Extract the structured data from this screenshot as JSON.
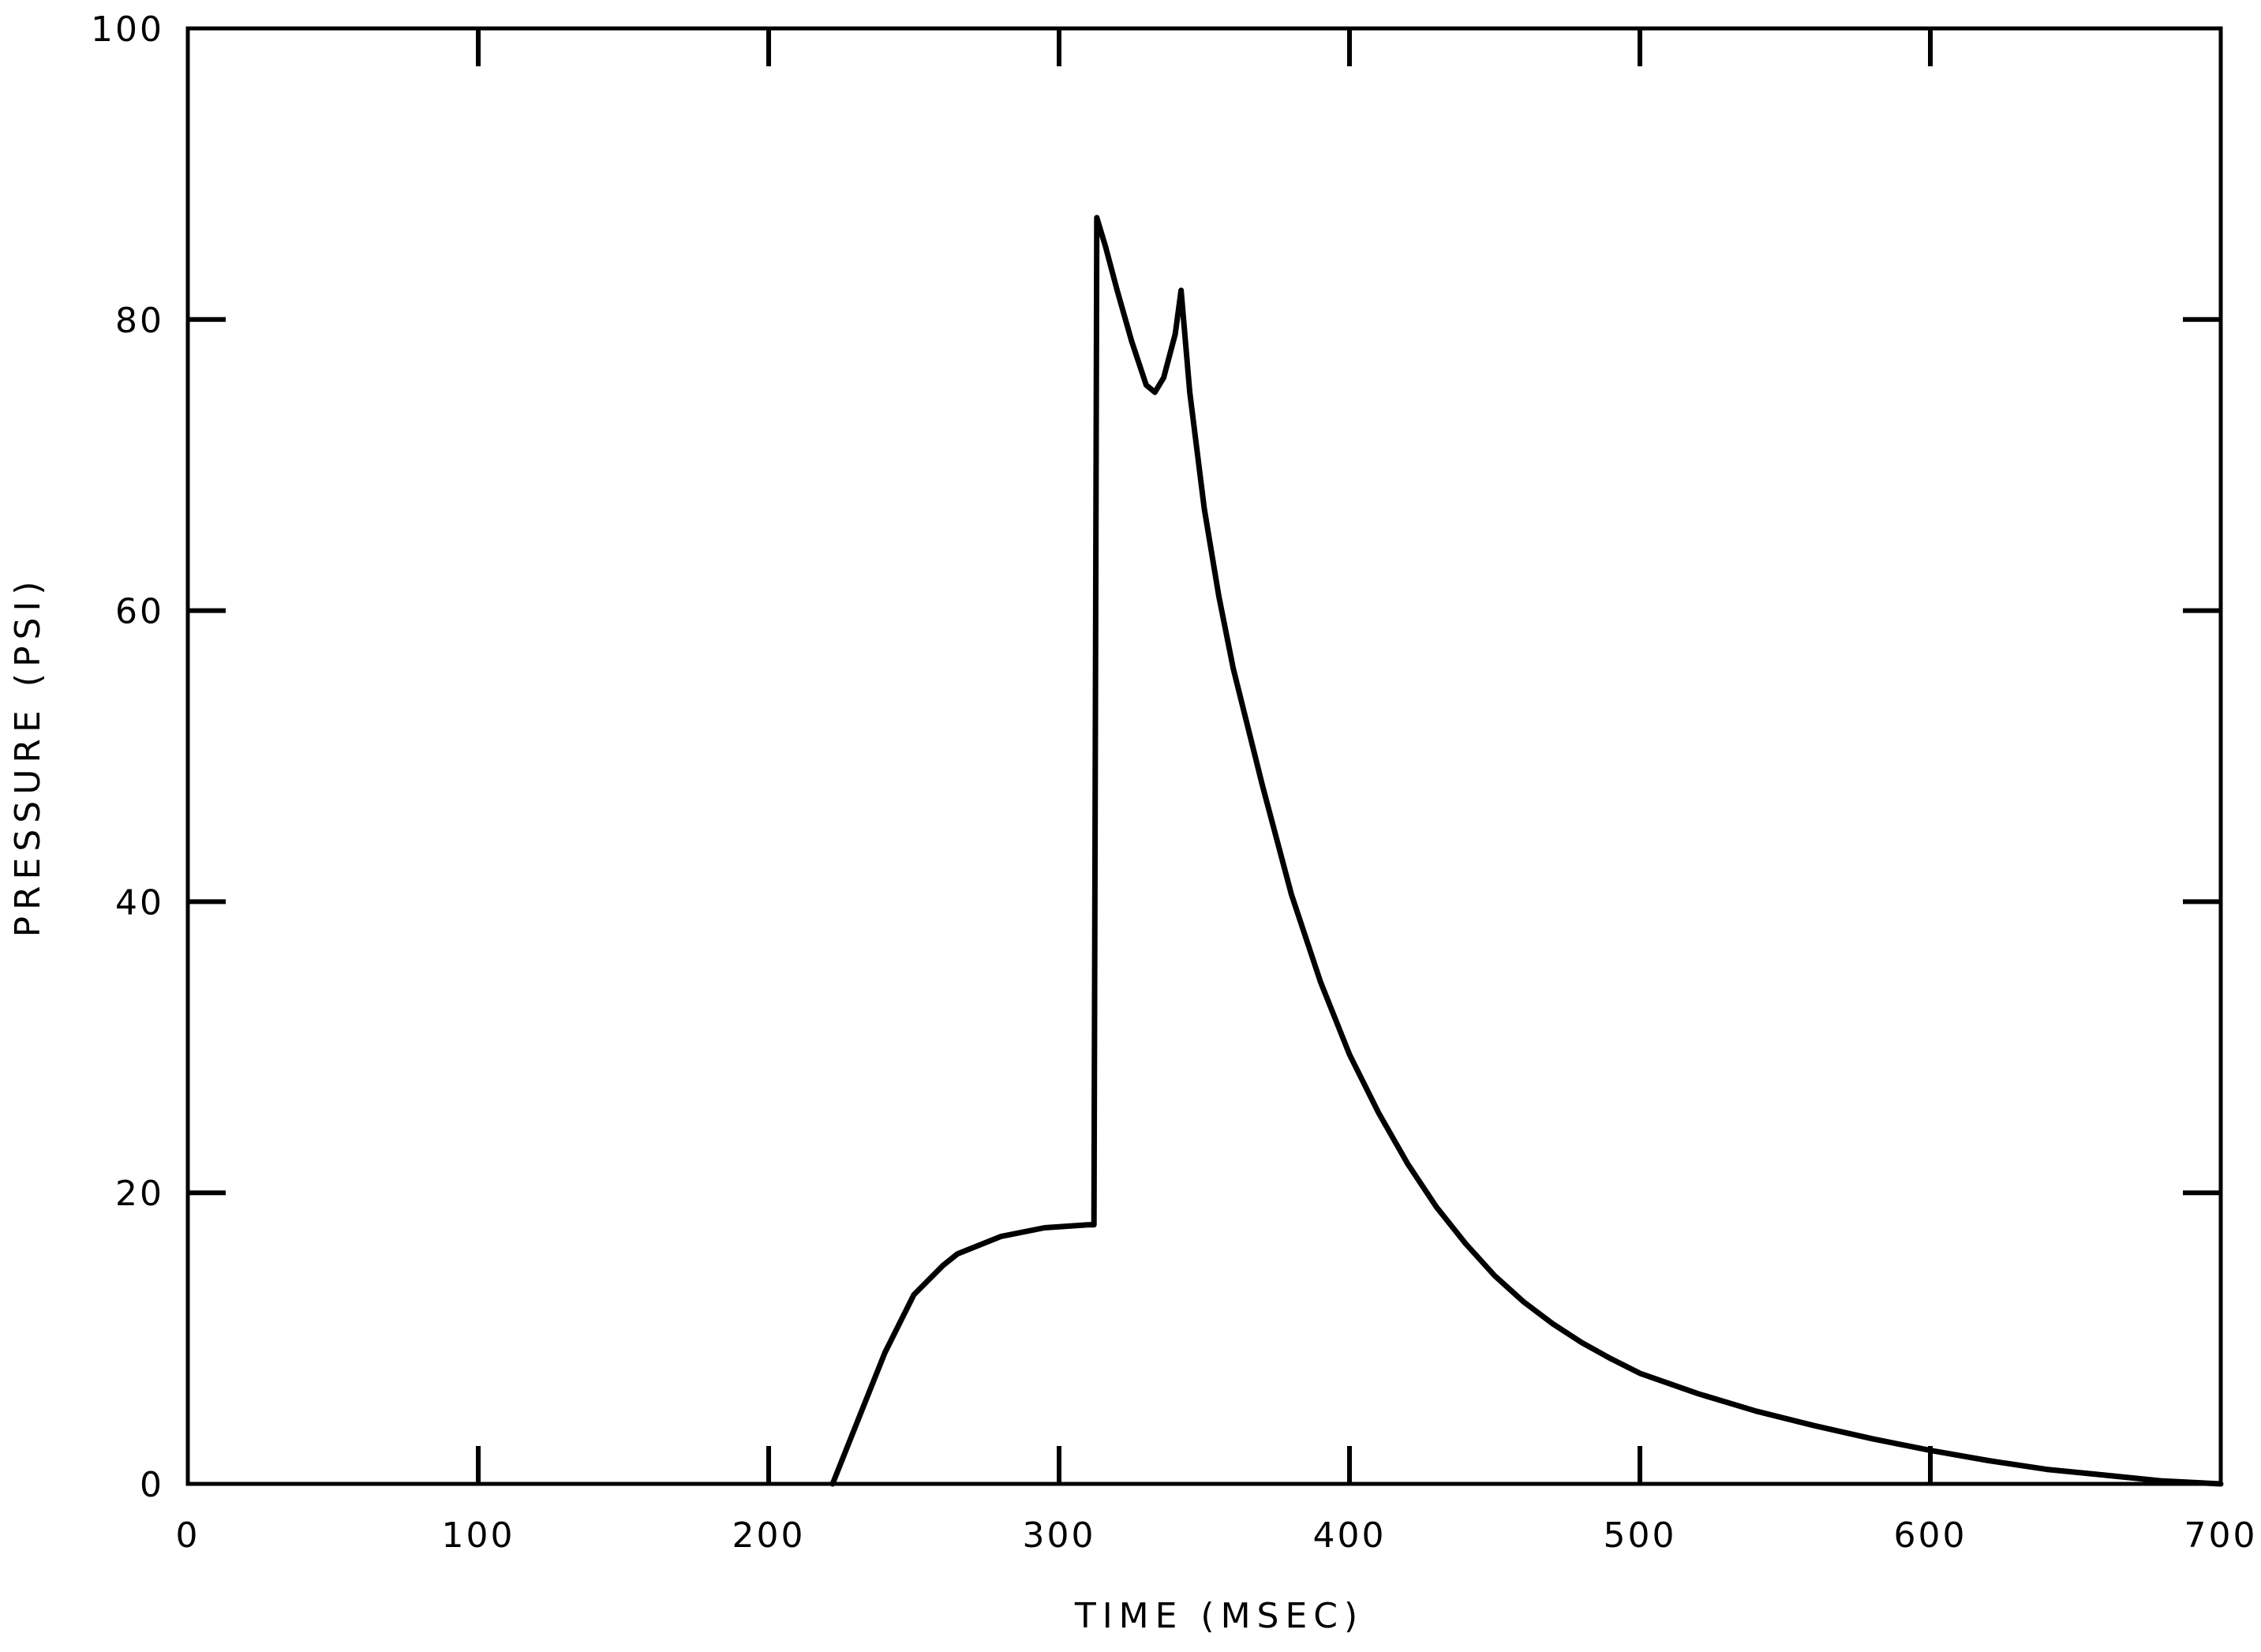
{
  "chart_data": {
    "type": "line",
    "title": "",
    "xlabel": "TIME (MSEC)",
    "ylabel": "PRESSURE (PSI)",
    "xlim": [
      0,
      700
    ],
    "ylim": [
      0,
      100
    ],
    "x_ticks": [
      "0",
      "100",
      "200",
      "300",
      "400",
      "500",
      "600",
      "700"
    ],
    "y_ticks": [
      "0",
      "20",
      "40",
      "60",
      "80",
      "100"
    ],
    "grid": false,
    "legend": "none",
    "series": [
      {
        "color": "#000000",
        "x": [
          222,
          230,
          240,
          250,
          260,
          265,
          280,
          295,
          310,
          312,
          313,
          316,
          320,
          325,
          330,
          333,
          336,
          340,
          342,
          345,
          350,
          355,
          360,
          370,
          380,
          390,
          400,
          410,
          420,
          430,
          440,
          450,
          460,
          470,
          480,
          490,
          500,
          520,
          540,
          560,
          580,
          600,
          620,
          640,
          660,
          680,
          700
        ],
        "y": [
          0,
          4,
          9,
          13,
          15,
          15.8,
          17,
          17.6,
          17.8,
          17.8,
          87,
          85,
          82,
          78.5,
          75.5,
          75,
          76,
          79,
          82,
          75,
          67,
          61,
          56,
          48,
          40.5,
          34.5,
          29.5,
          25.5,
          22,
          19,
          16.5,
          14.3,
          12.5,
          11,
          9.7,
          8.6,
          7.6,
          6.2,
          5,
          4,
          3.1,
          2.3,
          1.6,
          1,
          0.6,
          0.2,
          0
        ]
      }
    ]
  }
}
